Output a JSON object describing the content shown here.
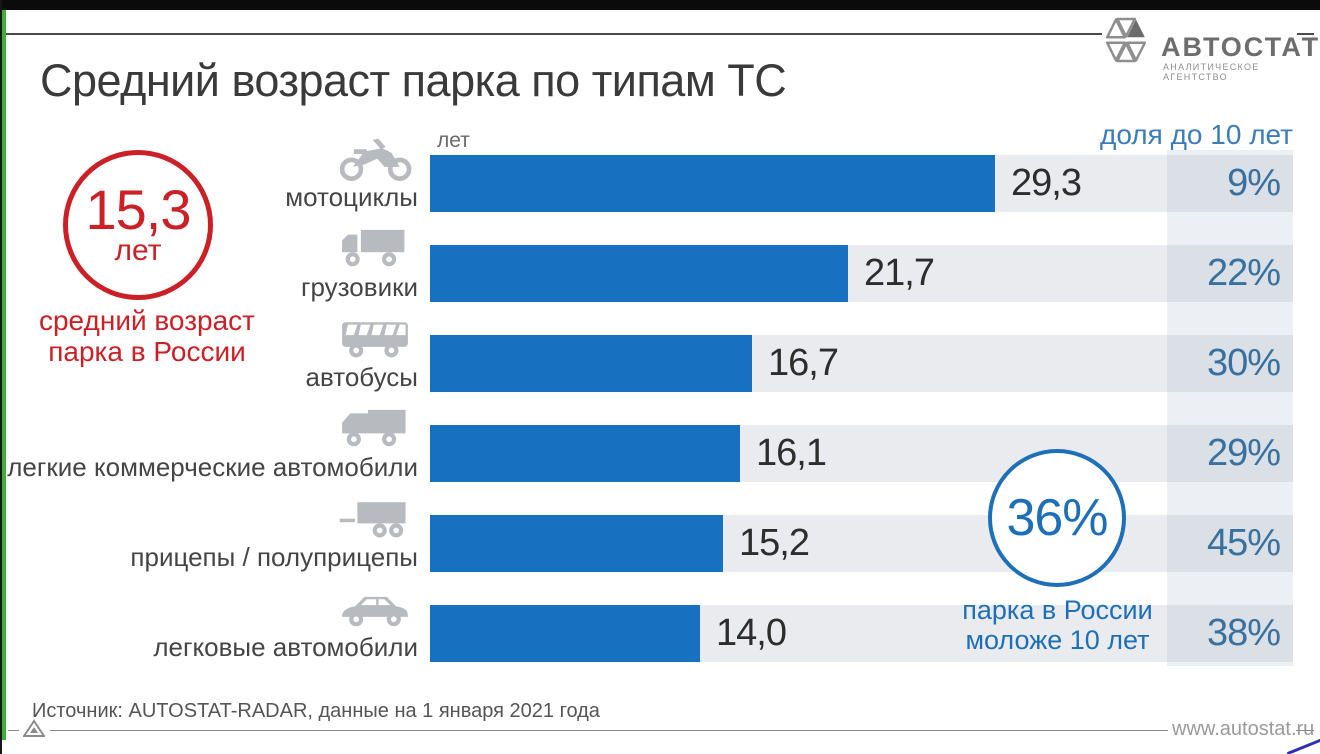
{
  "header": {
    "title": "Средний возраст парка по типам ТС",
    "logo_name": "АВТОСТАТ",
    "logo_subtitle": "АНАЛИТИЧЕСКОЕ АГЕНТСТВО"
  },
  "left_highlight": {
    "value": "15,3",
    "unit": "лет",
    "caption_line1": "средний возраст",
    "caption_line2": "парка в России",
    "color": "#cb2026"
  },
  "right_highlight": {
    "value": "36%",
    "caption_line1": "парка в России",
    "caption_line2": "моложе 10 лет",
    "color": "#1d6fb8"
  },
  "chart_data": {
    "type": "bar",
    "orientation": "horizontal",
    "title": "Средний возраст парка по типам ТС",
    "unit_label": "лет",
    "share_column_header": "доля до 10 лет",
    "categories": [
      "мотоциклы",
      "грузовики",
      "автобусы",
      "легкие коммерческие автомобили",
      "прицепы / полуприцепы",
      "легковые автомобили"
    ],
    "series": [
      {
        "name": "средний возраст, лет",
        "values": [
          29.3,
          21.7,
          16.7,
          16.1,
          15.2,
          14.0
        ]
      },
      {
        "name": "доля до 10 лет, %",
        "values": [
          9,
          22,
          30,
          29,
          45,
          38
        ]
      }
    ],
    "rows": [
      {
        "label": "мотоциклы",
        "icon": "motorcycle",
        "value": 29.3,
        "value_label": "29,3",
        "share": "9%"
      },
      {
        "label": "грузовики",
        "icon": "truck",
        "value": 21.7,
        "value_label": "21,7",
        "share": "22%"
      },
      {
        "label": "автобусы",
        "icon": "bus",
        "value": 16.7,
        "value_label": "16,7",
        "share": "30%"
      },
      {
        "label": "легкие коммерческие автомобили",
        "icon": "van",
        "value": 16.1,
        "value_label": "16,1",
        "share": "29%"
      },
      {
        "label": "прицепы / полуприцепы",
        "icon": "trailer",
        "value": 15.2,
        "value_label": "15,2",
        "share": "45%"
      },
      {
        "label": "легковые автомобили",
        "icon": "car",
        "value": 14.0,
        "value_label": "14,0",
        "share": "38%"
      }
    ],
    "xlim": [
      0,
      44.8
    ],
    "grid": false,
    "legend_position": "none",
    "bar_color": "#1870c0",
    "track_color": "#e9ebee",
    "value_label_color": "#2d2d2d",
    "share_color": "#38719f"
  },
  "footer": {
    "source": "Источник: AUTOSTAT-RADAR, данные на 1 января 2021 года",
    "website": "www.autostat.ru"
  }
}
